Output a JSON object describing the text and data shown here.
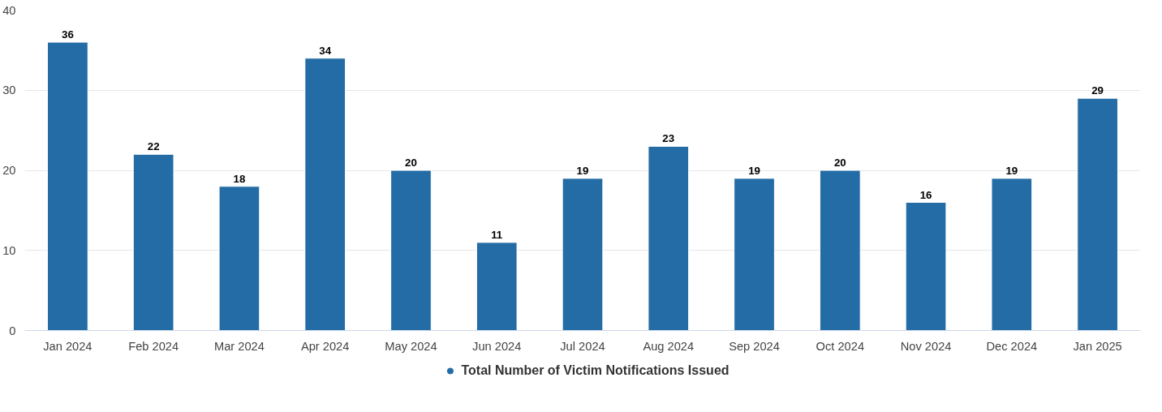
{
  "chart_data": {
    "type": "bar",
    "categories": [
      "Jan 2024",
      "Feb 2024",
      "Mar 2024",
      "Apr 2024",
      "May 2024",
      "Jun 2024",
      "Jul 2024",
      "Aug 2024",
      "Sep 2024",
      "Oct 2024",
      "Nov 2024",
      "Dec 2024",
      "Jan 2025"
    ],
    "series": [
      {
        "name": "Total Number of Victim Notifications Issued",
        "color": "#236ca5",
        "values": [
          36,
          22,
          18,
          34,
          20,
          11,
          19,
          23,
          19,
          20,
          16,
          19,
          29
        ]
      }
    ],
    "ylim": [
      0,
      40
    ],
    "yticks": [
      0,
      10,
      20,
      30,
      40
    ],
    "grid": "y",
    "legend": "bottom",
    "data_labels": true
  }
}
